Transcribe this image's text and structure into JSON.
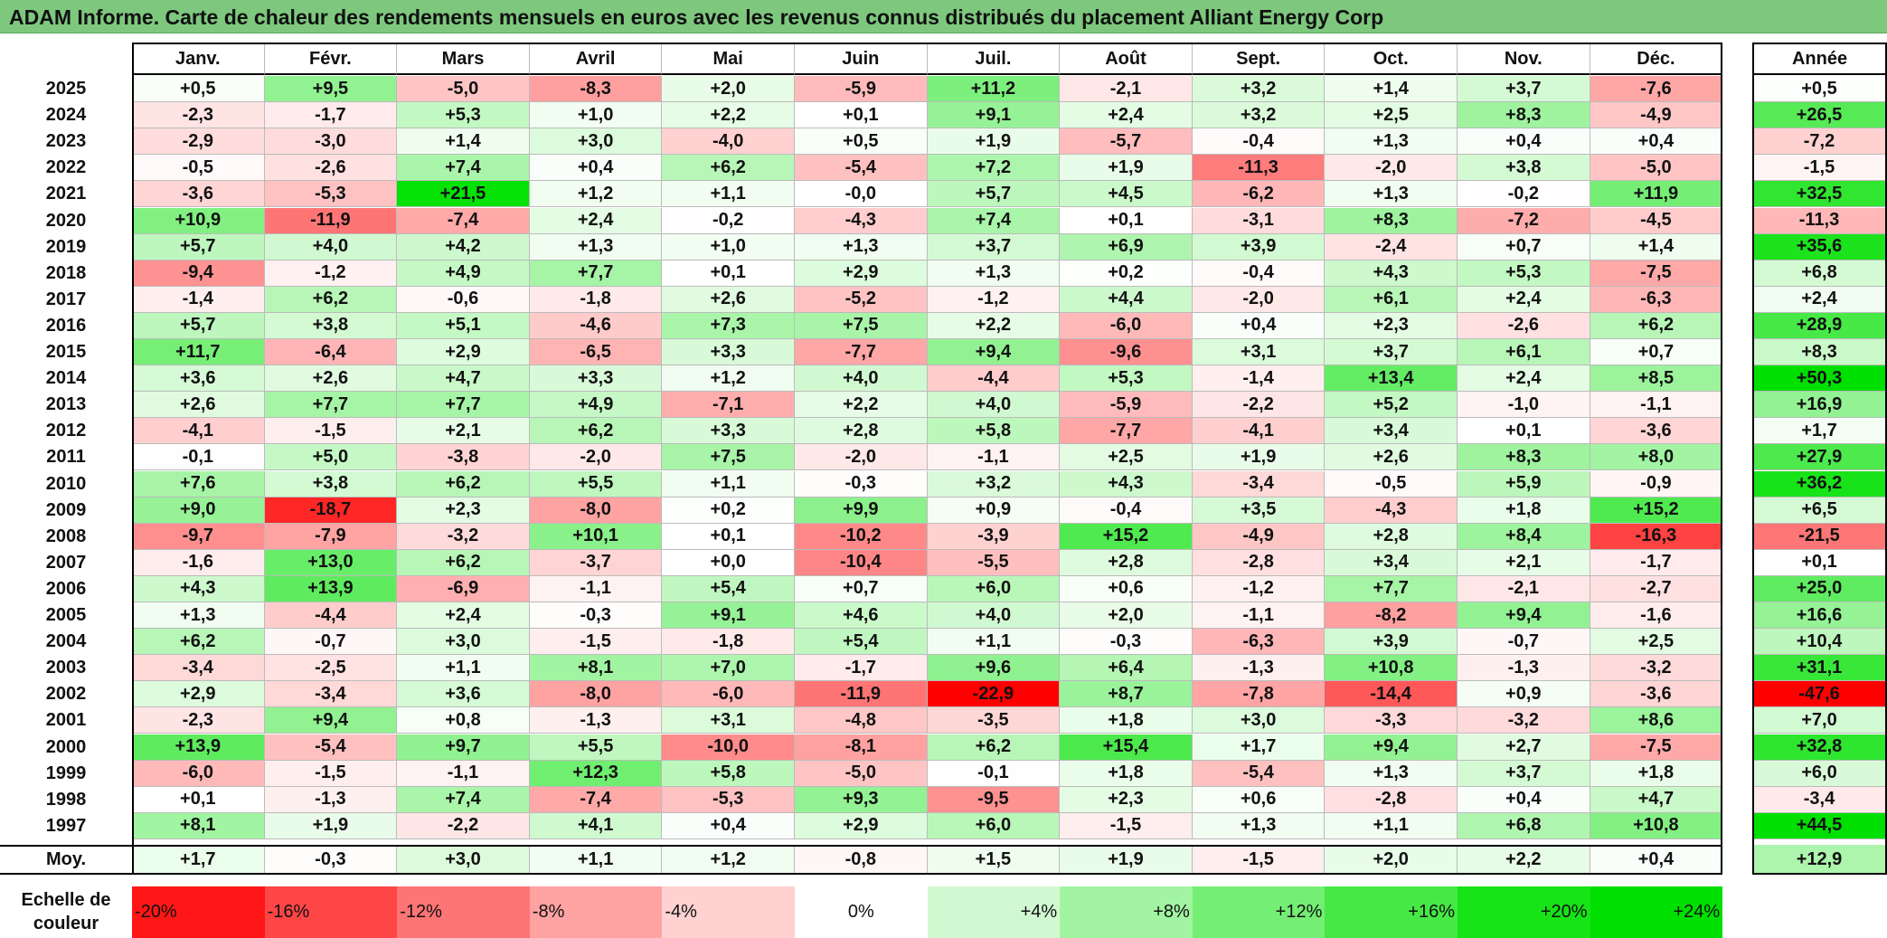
{
  "title": "ADAM Informe. Carte de chaleur des rendements mensuels en euros avec les revenus connus distribués du placement Alliant Energy Corp",
  "chart_data": {
    "type": "heatmap",
    "title": "ADAM Informe. Carte de chaleur des rendements mensuels en euros avec les revenus connus distribués du placement Alliant Energy Corp",
    "columns": [
      "Janv.",
      "Févr.",
      "Mars",
      "Avril",
      "Mai",
      "Juin",
      "Juil.",
      "Août",
      "Sept.",
      "Oct.",
      "Nov.",
      "Déc."
    ],
    "year_column_label": "Année",
    "rows": [
      {
        "year": "2025",
        "values": [
          "+0,5",
          "+9,5",
          "-5,0",
          "-8,3",
          "+2,0",
          "-5,9",
          "+11,2",
          "-2,1",
          "+3,2",
          "+1,4",
          "+3,7",
          "-7,6"
        ],
        "annual": "+0,5"
      },
      {
        "year": "2024",
        "values": [
          "-2,3",
          "-1,7",
          "+5,3",
          "+1,0",
          "+2,2",
          "+0,1",
          "+9,1",
          "+2,4",
          "+3,2",
          "+2,5",
          "+8,3",
          "-4,9"
        ],
        "annual": "+26,5"
      },
      {
        "year": "2023",
        "values": [
          "-2,9",
          "-3,0",
          "+1,4",
          "+3,0",
          "-4,0",
          "+0,5",
          "+1,9",
          "-5,7",
          "-0,4",
          "+1,3",
          "+0,4",
          "+0,4"
        ],
        "annual": "-7,2"
      },
      {
        "year": "2022",
        "values": [
          "-0,5",
          "-2,6",
          "+7,4",
          "+0,4",
          "+6,2",
          "-5,4",
          "+7,2",
          "+1,9",
          "-11,3",
          "-2,0",
          "+3,8",
          "-5,0"
        ],
        "annual": "-1,5"
      },
      {
        "year": "2021",
        "values": [
          "-3,6",
          "-5,3",
          "+21,5",
          "+1,2",
          "+1,1",
          "-0,0",
          "+5,7",
          "+4,5",
          "-6,2",
          "+1,3",
          "-0,2",
          "+11,9"
        ],
        "annual": "+32,5"
      },
      {
        "year": "2020",
        "values": [
          "+10,9",
          "-11,9",
          "-7,4",
          "+2,4",
          "-0,2",
          "-4,3",
          "+7,4",
          "+0,1",
          "-3,1",
          "+8,3",
          "-7,2",
          "-4,5"
        ],
        "annual": "-11,3"
      },
      {
        "year": "2019",
        "values": [
          "+5,7",
          "+4,0",
          "+4,2",
          "+1,3",
          "+1,0",
          "+1,3",
          "+3,7",
          "+6,9",
          "+3,9",
          "-2,4",
          "+0,7",
          "+1,4"
        ],
        "annual": "+35,6"
      },
      {
        "year": "2018",
        "values": [
          "-9,4",
          "-1,2",
          "+4,9",
          "+7,7",
          "+0,1",
          "+2,9",
          "+1,3",
          "+0,2",
          "-0,4",
          "+4,3",
          "+5,3",
          "-7,5"
        ],
        "annual": "+6,8"
      },
      {
        "year": "2017",
        "values": [
          "-1,4",
          "+6,2",
          "-0,6",
          "-1,8",
          "+2,6",
          "-5,2",
          "-1,2",
          "+4,4",
          "-2,0",
          "+6,1",
          "+2,4",
          "-6,3"
        ],
        "annual": "+2,4"
      },
      {
        "year": "2016",
        "values": [
          "+5,7",
          "+3,8",
          "+5,1",
          "-4,6",
          "+7,3",
          "+7,5",
          "+2,2",
          "-6,0",
          "+0,4",
          "+2,3",
          "-2,6",
          "+6,2"
        ],
        "annual": "+28,9"
      },
      {
        "year": "2015",
        "values": [
          "+11,7",
          "-6,4",
          "+2,9",
          "-6,5",
          "+3,3",
          "-7,7",
          "+9,4",
          "-9,6",
          "+3,1",
          "+3,7",
          "+6,1",
          "+0,7"
        ],
        "annual": "+8,3"
      },
      {
        "year": "2014",
        "values": [
          "+3,6",
          "+2,6",
          "+4,7",
          "+3,3",
          "+1,2",
          "+4,0",
          "-4,4",
          "+5,3",
          "-1,4",
          "+13,4",
          "+2,4",
          "+8,5"
        ],
        "annual": "+50,3"
      },
      {
        "year": "2013",
        "values": [
          "+2,6",
          "+7,7",
          "+7,7",
          "+4,9",
          "-7,1",
          "+2,2",
          "+4,0",
          "-5,9",
          "-2,2",
          "+5,2",
          "-1,0",
          "-1,1"
        ],
        "annual": "+16,9"
      },
      {
        "year": "2012",
        "values": [
          "-4,1",
          "-1,5",
          "+2,1",
          "+6,2",
          "+3,3",
          "+2,8",
          "+5,8",
          "-7,7",
          "-4,1",
          "+3,4",
          "+0,1",
          "-3,6"
        ],
        "annual": "+1,7"
      },
      {
        "year": "2011",
        "values": [
          "-0,1",
          "+5,0",
          "-3,8",
          "-2,0",
          "+7,5",
          "-2,0",
          "-1,1",
          "+2,5",
          "+1,9",
          "+2,6",
          "+8,3",
          "+8,0"
        ],
        "annual": "+27,9"
      },
      {
        "year": "2010",
        "values": [
          "+7,6",
          "+3,8",
          "+6,2",
          "+5,5",
          "+1,1",
          "-0,3",
          "+3,2",
          "+4,3",
          "-3,4",
          "-0,5",
          "+5,9",
          "-0,9"
        ],
        "annual": "+36,2"
      },
      {
        "year": "2009",
        "values": [
          "+9,0",
          "-18,7",
          "+2,3",
          "-8,0",
          "+0,2",
          "+9,9",
          "+0,9",
          "-0,4",
          "+3,5",
          "-4,3",
          "+1,8",
          "+15,2"
        ],
        "annual": "+6,5"
      },
      {
        "year": "2008",
        "values": [
          "-9,7",
          "-7,9",
          "-3,2",
          "+10,1",
          "+0,1",
          "-10,2",
          "-3,9",
          "+15,2",
          "-4,9",
          "+2,8",
          "+8,4",
          "-16,3"
        ],
        "annual": "-21,5"
      },
      {
        "year": "2007",
        "values": [
          "-1,6",
          "+13,0",
          "+6,2",
          "-3,7",
          "+0,0",
          "-10,4",
          "-5,5",
          "+2,8",
          "-2,8",
          "+3,4",
          "+2,1",
          "-1,7"
        ],
        "annual": "+0,1"
      },
      {
        "year": "2006",
        "values": [
          "+4,3",
          "+13,9",
          "-6,9",
          "-1,1",
          "+5,4",
          "+0,7",
          "+6,0",
          "+0,6",
          "-1,2",
          "+7,7",
          "-2,1",
          "-2,7"
        ],
        "annual": "+25,0"
      },
      {
        "year": "2005",
        "values": [
          "+1,3",
          "-4,4",
          "+2,4",
          "-0,3",
          "+9,1",
          "+4,6",
          "+4,0",
          "+2,0",
          "-1,1",
          "-8,2",
          "+9,4",
          "-1,6"
        ],
        "annual": "+16,6"
      },
      {
        "year": "2004",
        "values": [
          "+6,2",
          "-0,7",
          "+3,0",
          "-1,5",
          "-1,8",
          "+5,4",
          "+1,1",
          "-0,3",
          "-6,3",
          "+3,9",
          "-0,7",
          "+2,5"
        ],
        "annual": "+10,4"
      },
      {
        "year": "2003",
        "values": [
          "-3,4",
          "-2,5",
          "+1,1",
          "+8,1",
          "+7,0",
          "-1,7",
          "+9,6",
          "+6,4",
          "-1,3",
          "+10,8",
          "-1,3",
          "-3,2"
        ],
        "annual": "+31,1"
      },
      {
        "year": "2002",
        "values": [
          "+2,9",
          "-3,4",
          "+3,6",
          "-8,0",
          "-6,0",
          "-11,9",
          "-22,9",
          "+8,7",
          "-7,8",
          "-14,4",
          "+0,9",
          "-3,6"
        ],
        "annual": "-47,6"
      },
      {
        "year": "2001",
        "values": [
          "-2,3",
          "+9,4",
          "+0,8",
          "-1,3",
          "+3,1",
          "-4,8",
          "-3,5",
          "+1,8",
          "+3,0",
          "-3,3",
          "-3,2",
          "+8,6"
        ],
        "annual": "+7,0"
      },
      {
        "year": "2000",
        "values": [
          "+13,9",
          "-5,4",
          "+9,7",
          "+5,5",
          "-10,0",
          "-8,1",
          "+6,2",
          "+15,4",
          "+1,7",
          "+9,4",
          "+2,7",
          "-7,5"
        ],
        "annual": "+32,8"
      },
      {
        "year": "1999",
        "values": [
          "-6,0",
          "-1,5",
          "-1,1",
          "+12,3",
          "+5,8",
          "-5,0",
          "-0,1",
          "+1,8",
          "-5,4",
          "+1,3",
          "+3,7",
          "+1,8"
        ],
        "annual": "+6,0"
      },
      {
        "year": "1998",
        "values": [
          "+0,1",
          "-1,3",
          "+7,4",
          "-7,4",
          "-5,3",
          "+9,3",
          "-9,5",
          "+2,3",
          "+0,6",
          "-2,8",
          "+0,4",
          "+4,7"
        ],
        "annual": "-3,4"
      },
      {
        "year": "1997",
        "values": [
          "+8,1",
          "+1,9",
          "-2,2",
          "+4,1",
          "+0,4",
          "+2,9",
          "+6,0",
          "-1,5",
          "+1,3",
          "+1,1",
          "+6,8",
          "+10,8"
        ],
        "annual": "+44,5"
      }
    ],
    "average": {
      "label": "Moy.",
      "values": [
        "+1,7",
        "-0,3",
        "+3,0",
        "+1,1",
        "+1,2",
        "-0,8",
        "+1,5",
        "+1,9",
        "-1,5",
        "+2,0",
        "+2,2",
        "+0,4"
      ],
      "annual": "+12,9"
    },
    "scale": {
      "label_line1": "Echelle de",
      "label_line2": "couleur",
      "stops": [
        "-20%",
        "-16%",
        "-12%",
        "-8%",
        "-4%",
        "0%",
        "+4%",
        "+8%",
        "+12%",
        "+16%",
        "+20%",
        "+24%"
      ]
    },
    "colors": {
      "negative": "#ff0000",
      "zero": "#ffffff",
      "positive": "#00e000",
      "title_bar": "#7ec87e"
    }
  }
}
